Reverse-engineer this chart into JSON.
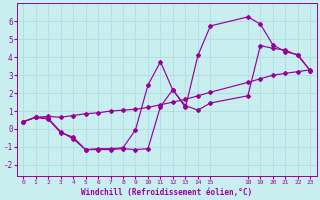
{
  "xlabel": "Windchill (Refroidissement éolien,°C)",
  "background_color": "#c8eef0",
  "grid_color": "#b0dde0",
  "line_color": "#990099",
  "xlim": [
    -0.5,
    23.5
  ],
  "ylim": [
    -2.6,
    7.0
  ],
  "xtick_positions": [
    0,
    1,
    2,
    3,
    4,
    5,
    6,
    7,
    8,
    9,
    10,
    11,
    12,
    13,
    14,
    15,
    18,
    19,
    20,
    21,
    22,
    23
  ],
  "xtick_labels": [
    "0",
    "1",
    "2",
    "3",
    "4",
    "5",
    "6",
    "7",
    "8",
    "9",
    "10",
    "11",
    "12",
    "13",
    "14",
    "15",
    "18",
    "19",
    "20",
    "21",
    "22",
    "23"
  ],
  "yticks": [
    -2,
    -1,
    0,
    1,
    2,
    3,
    4,
    5,
    6
  ],
  "line1_x": [
    0,
    1,
    2,
    3,
    4,
    5,
    6,
    7,
    8,
    9,
    10,
    11,
    12,
    13,
    14,
    15,
    18,
    19,
    20,
    21,
    22,
    23
  ],
  "line1_y": [
    0.4,
    0.65,
    0.7,
    0.65,
    0.75,
    0.85,
    0.9,
    1.0,
    1.05,
    1.1,
    1.2,
    1.35,
    1.5,
    1.65,
    1.85,
    2.05,
    2.6,
    2.8,
    3.0,
    3.1,
    3.2,
    3.3
  ],
  "line2_x": [
    0,
    1,
    2,
    3,
    4,
    5,
    6,
    7,
    8,
    9,
    10,
    11,
    12,
    13,
    14,
    15,
    18,
    19,
    20,
    21,
    22,
    23
  ],
  "line2_y": [
    0.4,
    0.65,
    0.6,
    -0.15,
    -0.55,
    -1.15,
    -1.15,
    -1.15,
    -1.1,
    -1.15,
    -1.1,
    1.25,
    2.2,
    1.2,
    4.1,
    5.75,
    6.25,
    5.85,
    4.7,
    4.3,
    4.15,
    3.25
  ],
  "line3_x": [
    0,
    1,
    2,
    3,
    4,
    5,
    6,
    7,
    8,
    9,
    10,
    11,
    12,
    13,
    14,
    15,
    18,
    19,
    20,
    21,
    22,
    23
  ],
  "line3_y": [
    0.4,
    0.65,
    0.55,
    -0.2,
    -0.45,
    -1.15,
    -1.1,
    -1.1,
    -1.05,
    -0.05,
    2.45,
    3.75,
    2.15,
    1.3,
    1.05,
    1.45,
    1.85,
    4.65,
    4.5,
    4.4,
    4.1,
    3.25
  ]
}
